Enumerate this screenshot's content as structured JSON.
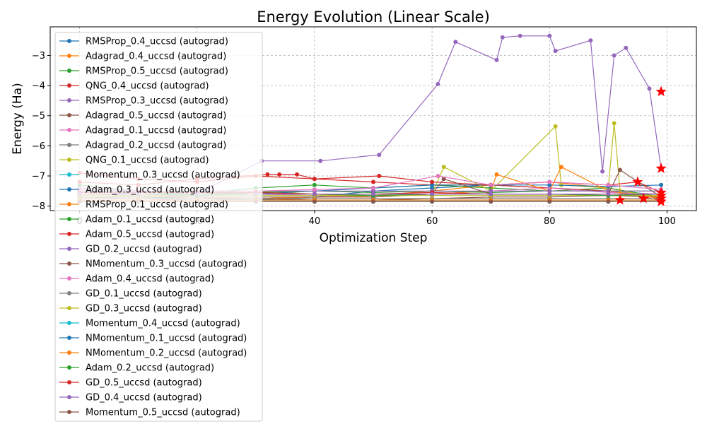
{
  "chart_data": {
    "type": "line",
    "title": "Energy Evolution (Linear Scale)",
    "xlabel": "Optimization Step",
    "ylabel": "Energy (Ha)",
    "xlim": [
      -5,
      105
    ],
    "ylim": [
      -8.15,
      -2.05
    ],
    "xticks": [
      0,
      20,
      40,
      60,
      80,
      100
    ],
    "yticks": [
      -8,
      -7,
      -6,
      -5,
      -4,
      -3
    ],
    "xtick_labels": [
      "0",
      "20",
      "40",
      "60",
      "80",
      "100"
    ],
    "ytick_labels": [
      "−8",
      "−7",
      "−6",
      "−5",
      "−4",
      "−3"
    ],
    "grid": true,
    "grid_style": "dashed",
    "legend_position": "upper-left",
    "final_marker": "red-star",
    "final_marker_color": "#ff0000",
    "series": [
      {
        "name": "RMSProp_0.4_uccsd (autograd)",
        "color": "#1f77b4",
        "x": [
          0,
          10,
          20,
          30,
          40,
          50,
          60,
          70,
          80,
          90,
          99
        ],
        "y": [
          -7.6,
          -7.7,
          -7.75,
          -7.8,
          -7.7,
          -7.5,
          -7.4,
          -7.3,
          -7.4,
          -7.5,
          -7.62
        ]
      },
      {
        "name": "Adagrad_0.4_uccsd (autograd)",
        "color": "#ff7f0e",
        "x": [
          0,
          10,
          20,
          30,
          40,
          50,
          60,
          70,
          80,
          90,
          99
        ],
        "y": [
          -7.5,
          -7.6,
          -7.7,
          -7.75,
          -7.7,
          -7.65,
          -7.5,
          -7.3,
          -7.2,
          -7.4,
          -7.75
        ]
      },
      {
        "name": "RMSProp_0.5_uccsd (autograd)",
        "color": "#2ca02c",
        "x": [
          0,
          10,
          20,
          30,
          40,
          50,
          60,
          70,
          80,
          90,
          99
        ],
        "y": [
          -7.3,
          -7.5,
          -7.6,
          -7.4,
          -7.3,
          -7.4,
          -7.3,
          -7.4,
          -7.5,
          -7.4,
          -7.7
        ]
      },
      {
        "name": "QNG_0.4_uccsd (autograd)",
        "color": "#d62728",
        "x": [
          0,
          10,
          20,
          30,
          40,
          50,
          60,
          70,
          80,
          90,
          99
        ],
        "y": [
          -6.9,
          -7.1,
          -7.2,
          -7.0,
          -7.1,
          -7.2,
          -7.3,
          -7.3,
          -7.4,
          -7.5,
          -7.8
        ]
      },
      {
        "name": "RMSProp_0.3_uccsd (autograd)",
        "color": "#9467bd",
        "x": [
          0,
          10,
          20,
          31,
          41,
          51,
          61,
          64,
          71,
          72,
          75,
          80,
          81,
          87,
          89,
          91,
          93,
          97,
          99
        ],
        "y": [
          -7.4,
          -7.5,
          -7.6,
          -6.5,
          -6.5,
          -6.3,
          -3.95,
          -2.55,
          -3.15,
          -2.4,
          -2.35,
          -2.35,
          -2.85,
          -2.5,
          -6.85,
          -3.0,
          -2.75,
          -4.1,
          -6.75
        ]
      },
      {
        "name": "Adagrad_0.5_uccsd (autograd)",
        "color": "#8c564b",
        "x": [
          0,
          10,
          20,
          30,
          40,
          50,
          60,
          70,
          80,
          90,
          99
        ],
        "y": [
          -7.6,
          -7.65,
          -7.7,
          -7.75,
          -7.8,
          -7.8,
          -7.75,
          -7.7,
          -7.7,
          -7.65,
          -7.7
        ]
      },
      {
        "name": "Adagrad_0.1_uccsd (autograd)",
        "color": "#e377c2",
        "x": [
          0,
          10,
          20,
          30,
          40,
          50,
          60,
          70,
          80,
          90,
          99
        ],
        "y": [
          -7.6,
          -7.5,
          -7.55,
          -7.6,
          -7.65,
          -7.7,
          -7.6,
          -7.5,
          -7.4,
          -7.55,
          -7.6
        ]
      },
      {
        "name": "Adagrad_0.2_uccsd (autograd)",
        "color": "#7f7f7f",
        "x": [
          0,
          10,
          20,
          30,
          40,
          50,
          60,
          70,
          80,
          90,
          99
        ],
        "y": [
          -7.7,
          -7.75,
          -7.8,
          -7.8,
          -7.8,
          -7.8,
          -7.8,
          -7.8,
          -7.8,
          -7.8,
          -7.8
        ]
      },
      {
        "name": "QNG_0.1_uccsd (autograd)",
        "color": "#bcbd22",
        "x": [
          0,
          10,
          20,
          30,
          40,
          50,
          60,
          62,
          70,
          81,
          82,
          90,
          91,
          92,
          99
        ],
        "y": [
          -7.6,
          -7.7,
          -7.6,
          -7.5,
          -7.6,
          -7.7,
          -7.6,
          -6.7,
          -7.5,
          -5.35,
          -7.3,
          -7.4,
          -5.25,
          -7.5,
          -7.7
        ]
      },
      {
        "name": "Momentum_0.3_uccsd (autograd)",
        "color": "#17becf",
        "x": [
          0,
          10,
          20,
          30,
          40,
          50,
          60,
          70,
          80,
          90,
          99
        ],
        "y": [
          -7.85,
          -7.85,
          -7.85,
          -7.85,
          -7.85,
          -7.85,
          -7.85,
          -7.85,
          -7.85,
          -7.85,
          -7.85
        ]
      },
      {
        "name": "Adam_0.3_uccsd (autograd)",
        "color": "#1f77b4",
        "x": [
          0,
          10,
          20,
          30,
          40,
          50,
          60,
          70,
          80,
          90,
          99
        ],
        "y": [
          -7.5,
          -7.6,
          -7.65,
          -7.6,
          -7.5,
          -7.4,
          -7.3,
          -7.3,
          -7.3,
          -7.35,
          -7.3
        ]
      },
      {
        "name": "RMSProp_0.1_uccsd (autograd)",
        "color": "#ff7f0e",
        "x": [
          0,
          10,
          20,
          30,
          40,
          50,
          60,
          70,
          71,
          80,
          82,
          90,
          99
        ],
        "y": [
          -7.7,
          -7.7,
          -7.7,
          -7.75,
          -7.7,
          -7.7,
          -7.6,
          -7.5,
          -6.95,
          -7.5,
          -6.7,
          -7.5,
          -7.75
        ]
      },
      {
        "name": "Adam_0.1_uccsd (autograd)",
        "color": "#2ca02c",
        "x": [
          0,
          10,
          20,
          30,
          40,
          50,
          60,
          70,
          80,
          90,
          99
        ],
        "y": [
          -7.5,
          -7.55,
          -7.6,
          -7.55,
          -7.5,
          -7.55,
          -7.5,
          -7.55,
          -7.5,
          -7.5,
          -7.5
        ]
      },
      {
        "name": "Adam_0.5_uccsd (autograd)",
        "color": "#d62728",
        "x": [
          0,
          10,
          20,
          32,
          34,
          37,
          40,
          51,
          60,
          70,
          80,
          90,
          95,
          99
        ],
        "y": [
          -7.2,
          -7.3,
          -7.1,
          -6.95,
          -6.95,
          -6.95,
          -7.1,
          -7.0,
          -7.2,
          -7.3,
          -7.2,
          -7.3,
          -7.2,
          -7.55
        ]
      },
      {
        "name": "GD_0.2_uccsd (autograd)",
        "color": "#9467bd",
        "x": [
          0,
          10,
          20,
          30,
          40,
          50,
          60,
          70,
          80,
          90,
          99
        ],
        "y": [
          -7.5,
          -7.5,
          -7.5,
          -7.5,
          -7.5,
          -7.5,
          -7.5,
          -7.5,
          -7.5,
          -7.5,
          -7.5
        ]
      },
      {
        "name": "NMomentum_0.3_uccsd (autograd)",
        "color": "#8c564b",
        "x": [
          0,
          10,
          20,
          30,
          40,
          50,
          60,
          62,
          70,
          80,
          90,
          92,
          99
        ],
        "y": [
          -7.7,
          -7.7,
          -7.7,
          -7.7,
          -7.7,
          -7.7,
          -7.6,
          -7.1,
          -7.6,
          -7.6,
          -7.6,
          -6.8,
          -7.7
        ]
      },
      {
        "name": "Adam_0.4_uccsd (autograd)",
        "color": "#e377c2",
        "x": [
          0,
          10,
          20,
          30,
          40,
          50,
          61,
          70,
          80,
          90,
          99
        ],
        "y": [
          -7.45,
          -7.5,
          -7.55,
          -7.5,
          -7.45,
          -7.4,
          -7.0,
          -7.3,
          -7.2,
          -7.3,
          -7.45
        ]
      },
      {
        "name": "GD_0.1_uccsd (autograd)",
        "color": "#7f7f7f",
        "x": [
          0,
          10,
          20,
          30,
          40,
          50,
          60,
          70,
          80,
          90,
          99
        ],
        "y": [
          -7.75,
          -7.75,
          -7.75,
          -7.75,
          -7.75,
          -7.75,
          -7.75,
          -7.75,
          -7.75,
          -7.75,
          -7.75
        ]
      },
      {
        "name": "GD_0.3_uccsd (autograd)",
        "color": "#bcbd22",
        "x": [
          0,
          10,
          20,
          30,
          40,
          50,
          60,
          70,
          80,
          90,
          99
        ],
        "y": [
          -7.65,
          -7.65,
          -7.65,
          -7.65,
          -7.65,
          -7.65,
          -7.65,
          -7.65,
          -7.65,
          -7.65,
          -7.65
        ]
      },
      {
        "name": "Momentum_0.4_uccsd (autograd)",
        "color": "#17becf",
        "x": [
          0,
          10,
          20,
          30,
          40,
          50,
          60,
          70,
          80,
          90,
          99
        ],
        "y": [
          -7.8,
          -7.8,
          -7.8,
          -7.8,
          -7.8,
          -7.8,
          -7.8,
          -7.8,
          -7.8,
          -7.8,
          -7.8
        ]
      },
      {
        "name": "NMomentum_0.1_uccsd (autograd)",
        "color": "#1f77b4",
        "x": [
          0,
          10,
          20,
          30,
          40,
          50,
          60,
          70,
          80,
          90,
          99
        ],
        "y": [
          -7.85,
          -7.85,
          -7.85,
          -7.85,
          -7.85,
          -7.85,
          -7.85,
          -7.85,
          -7.85,
          -7.85,
          -7.85
        ]
      },
      {
        "name": "NMomentum_0.2_uccsd (autograd)",
        "color": "#ff7f0e",
        "x": [
          0,
          10,
          20,
          30,
          40,
          50,
          60,
          70,
          80,
          90,
          99
        ],
        "y": [
          -7.8,
          -7.8,
          -7.8,
          -7.8,
          -7.8,
          -7.8,
          -7.8,
          -7.8,
          -7.8,
          -7.8,
          -7.8
        ]
      },
      {
        "name": "Adam_0.2_uccsd (autograd)",
        "color": "#2ca02c",
        "x": [
          0,
          10,
          20,
          30,
          40,
          50,
          60,
          70,
          80,
          90,
          99
        ],
        "y": [
          -7.6,
          -7.6,
          -7.65,
          -7.6,
          -7.6,
          -7.65,
          -7.6,
          -7.6,
          -7.6,
          -7.65,
          -7.6
        ]
      },
      {
        "name": "GD_0.5_uccsd (autograd)",
        "color": "#d62728",
        "x": [
          0,
          10,
          20,
          30,
          40,
          50,
          60,
          70,
          80,
          90,
          99
        ],
        "y": [
          -7.55,
          -7.55,
          -7.55,
          -7.55,
          -7.6,
          -7.6,
          -7.55,
          -7.6,
          -7.6,
          -7.6,
          -7.6
        ]
      },
      {
        "name": "GD_0.4_uccsd (autograd)",
        "color": "#9467bd",
        "x": [
          0,
          10,
          20,
          30,
          40,
          50,
          60,
          70,
          80,
          90,
          99
        ],
        "y": [
          -7.6,
          -7.6,
          -7.6,
          -7.6,
          -7.6,
          -7.6,
          -7.6,
          -7.6,
          -7.6,
          -7.6,
          -7.6
        ]
      },
      {
        "name": "Momentum_0.5_uccsd (autograd)",
        "color": "#8c564b",
        "x": [
          0,
          10,
          20,
          30,
          40,
          50,
          60,
          70,
          80,
          90,
          99
        ],
        "y": [
          -7.85,
          -7.85,
          -7.85,
          -7.85,
          -7.85,
          -7.85,
          -7.85,
          -7.85,
          -7.85,
          -7.85,
          -7.85
        ]
      }
    ],
    "final_points": [
      {
        "x": 99,
        "y": -4.2
      },
      {
        "x": 99,
        "y": -6.75
      },
      {
        "x": 99,
        "y": -7.55
      },
      {
        "x": 99,
        "y": -7.65
      },
      {
        "x": 99,
        "y": -7.75
      },
      {
        "x": 99,
        "y": -7.85
      },
      {
        "x": 92,
        "y": -7.8
      },
      {
        "x": 95,
        "y": -7.2
      },
      {
        "x": 96,
        "y": -7.75
      }
    ]
  }
}
